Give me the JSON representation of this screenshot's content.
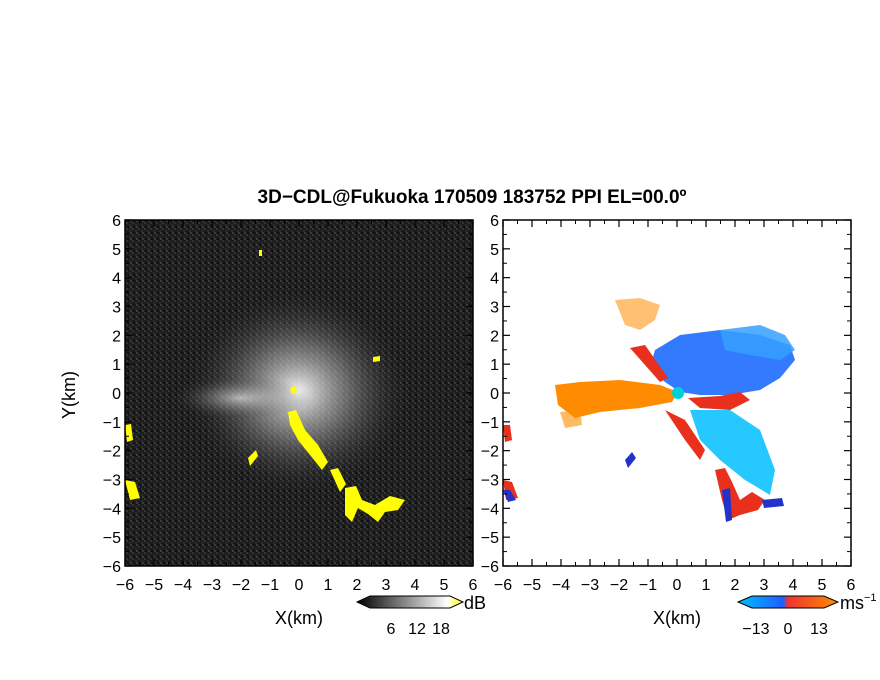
{
  "chart_data": {
    "type": "heatmap",
    "title": "3D−CDL@Fukuoka 170509 183752 PPI EL=00.0º",
    "xlabel": "X(km)",
    "ylabel": "Y(km)",
    "xlim": [
      -6,
      6
    ],
    "ylim": [
      -6,
      6
    ],
    "ticks": [
      "−6",
      "−5",
      "−4",
      "−3",
      "−2",
      "−1",
      "0",
      "1",
      "2",
      "3",
      "4",
      "5",
      "6"
    ],
    "tick_values": [
      -6,
      -5,
      -4,
      -3,
      -2,
      -1,
      0,
      1,
      2,
      3,
      4,
      5,
      6
    ],
    "panels": [
      {
        "name": "reflectivity",
        "colorbar": {
          "unit": "dB",
          "labels": [
            "6",
            "12",
            "18"
          ],
          "colors": [
            "#000000",
            "#ffffff",
            "#ffff00"
          ]
        },
        "background": "#1e1e1e",
        "highlight_color": "#ffff00"
      },
      {
        "name": "velocity",
        "colorbar": {
          "unit": "ms",
          "unit_sup": "−1",
          "labels": [
            "−13",
            "0",
            "13"
          ],
          "colors": [
            "#1e90ff",
            "#00bfff",
            "#e8491d",
            "#ff8c00"
          ]
        },
        "background": "#ffffff"
      }
    ]
  }
}
